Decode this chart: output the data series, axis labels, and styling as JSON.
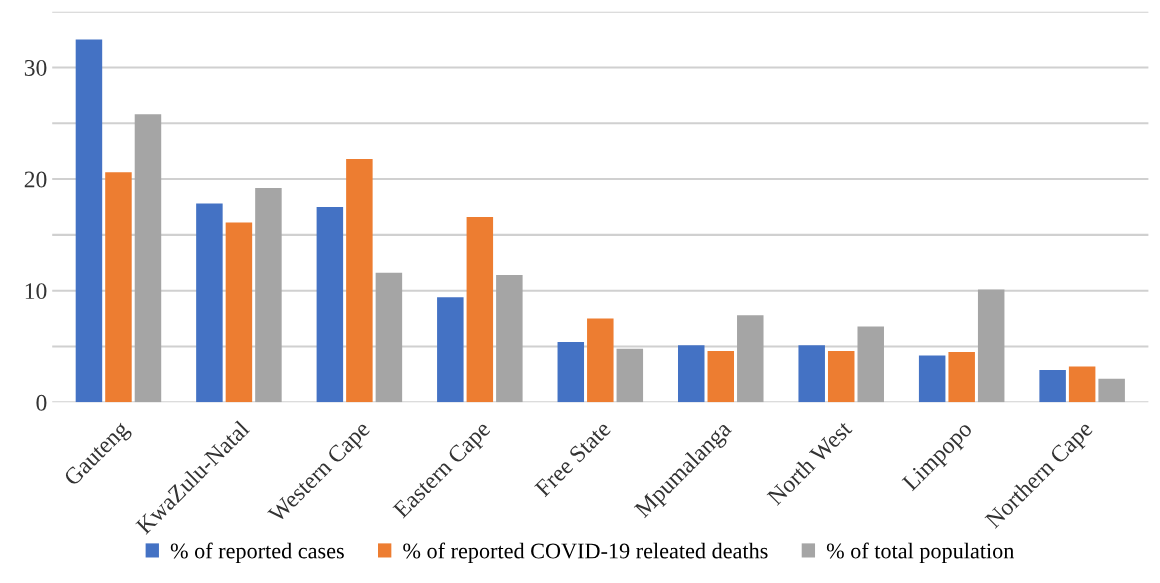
{
  "chart_data": {
    "type": "bar",
    "categories": [
      "Gauteng",
      "KwaZulu-Natal",
      "Western Cape",
      "Eastern Cape",
      "Free State",
      "Mpumalanga",
      "North West",
      "Limpopo",
      "Northern Cape"
    ],
    "series": [
      {
        "name": "% of reported cases",
        "color": "#4472c4",
        "values": [
          32.5,
          17.8,
          17.5,
          9.4,
          5.4,
          5.1,
          5.1,
          4.2,
          2.9
        ]
      },
      {
        "name": "% of reported COVID-19 releated deaths",
        "color": "#ed7d31",
        "values": [
          20.6,
          16.1,
          21.8,
          16.6,
          7.5,
          4.6,
          4.6,
          4.5,
          3.2
        ]
      },
      {
        "name": "% of total population",
        "color": "#a5a5a5",
        "values": [
          25.8,
          19.2,
          11.6,
          11.4,
          4.8,
          7.8,
          6.8,
          10.1,
          2.1
        ]
      }
    ],
    "ylim": [
      0,
      35
    ],
    "yticks": [
      0,
      {
        "value": 5,
        "label": null
      },
      10,
      {
        "value": 15,
        "label": null
      },
      20,
      {
        "value": 25,
        "label": null
      },
      30,
      {
        "value": 35,
        "label": null
      }
    ],
    "grid": "y",
    "legend": "bottom"
  }
}
